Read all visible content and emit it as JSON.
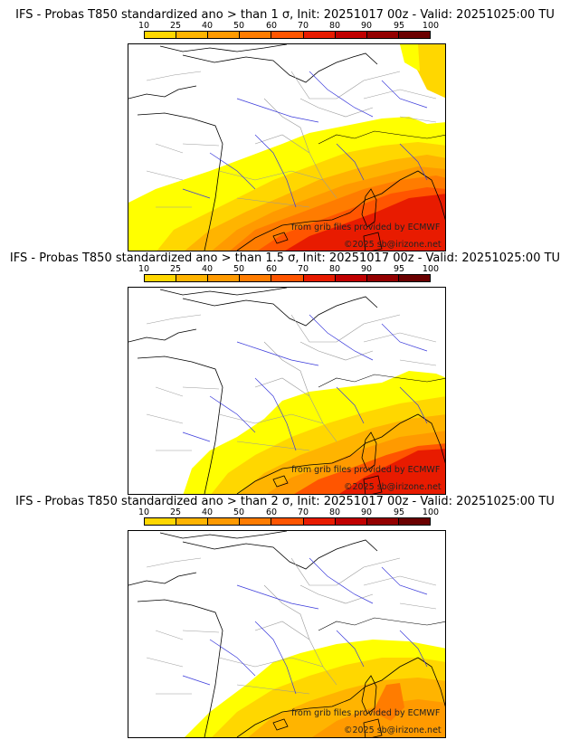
{
  "colorbar": {
    "ticks": [
      "10",
      "25",
      "40",
      "50",
      "60",
      "70",
      "80",
      "90",
      "95",
      "100"
    ],
    "colors": [
      "#ffff00",
      "#ffd700",
      "#ffb400",
      "#ff9a00",
      "#ff7c00",
      "#ff5500",
      "#e81b00",
      "#c10000",
      "#940000",
      "#6b0000"
    ]
  },
  "credits": {
    "source": "from grib files provided by ECMWF",
    "copyright": "©2025 sb@irizone.net"
  },
  "panels": [
    {
      "title": "IFS - Probas T850  standardized ano > than 1 σ, Init: 20251017 00z - Valid: 20251025:00 TU",
      "threshold_sigma": 1
    },
    {
      "title": "IFS - Probas T850  standardized ano > than 1.5 σ, Init: 20251017 00z - Valid: 20251025:00 TU",
      "threshold_sigma": 1.5
    },
    {
      "title": "IFS - Probas T850  standardized ano > than 2 σ, Init: 20251017 00z - Valid: 20251025:00 TU",
      "threshold_sigma": 2
    }
  ]
}
